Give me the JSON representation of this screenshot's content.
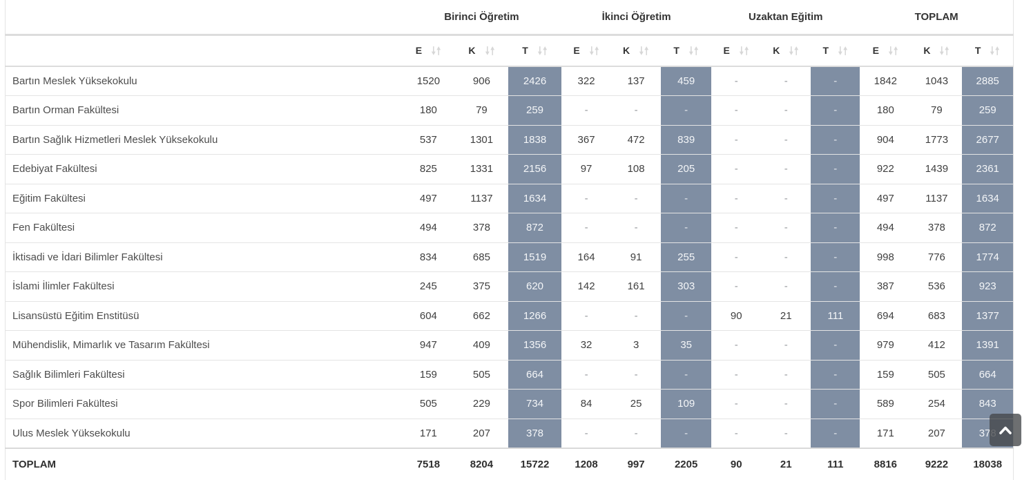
{
  "colors": {
    "total_column_bg": "#7f8ea3",
    "total_column_text": "#f4f6f8",
    "header_text": "#333333",
    "sort_icon": "#d7d7d7",
    "scroll_button_bg": "rgba(68,70,73,0.78)"
  },
  "icons": {
    "sort": "up-down-arrows",
    "scroll_top": "chevron-up"
  },
  "table": {
    "group_headers": [
      "Birinci Öğretim",
      "İkinci Öğretim",
      "Uzaktan Eğitim",
      "TOPLAM"
    ],
    "sub_headers": [
      "E",
      "K",
      "T",
      "E",
      "K",
      "T",
      "E",
      "K",
      "T",
      "E",
      "K",
      "T"
    ],
    "rows": [
      {
        "name": "Bartın Meslek Yüksekokulu",
        "values": [
          "1520",
          "906",
          "2426",
          "322",
          "137",
          "459",
          "-",
          "-",
          "-",
          "1842",
          "1043",
          "2885"
        ]
      },
      {
        "name": "Bartın Orman Fakültesi",
        "values": [
          "180",
          "79",
          "259",
          "-",
          "-",
          "-",
          "-",
          "-",
          "-",
          "180",
          "79",
          "259"
        ]
      },
      {
        "name": "Bartın Sağlık Hizmetleri Meslek Yüksekokulu",
        "values": [
          "537",
          "1301",
          "1838",
          "367",
          "472",
          "839",
          "-",
          "-",
          "-",
          "904",
          "1773",
          "2677"
        ]
      },
      {
        "name": "Edebiyat Fakültesi",
        "values": [
          "825",
          "1331",
          "2156",
          "97",
          "108",
          "205",
          "-",
          "-",
          "-",
          "922",
          "1439",
          "2361"
        ]
      },
      {
        "name": "Eğitim Fakültesi",
        "values": [
          "497",
          "1137",
          "1634",
          "-",
          "-",
          "-",
          "-",
          "-",
          "-",
          "497",
          "1137",
          "1634"
        ]
      },
      {
        "name": "Fen Fakültesi",
        "values": [
          "494",
          "378",
          "872",
          "-",
          "-",
          "-",
          "-",
          "-",
          "-",
          "494",
          "378",
          "872"
        ]
      },
      {
        "name": "İktisadi ve İdari Bilimler Fakültesi",
        "values": [
          "834",
          "685",
          "1519",
          "164",
          "91",
          "255",
          "-",
          "-",
          "-",
          "998",
          "776",
          "1774"
        ]
      },
      {
        "name": "İslami İlimler Fakültesi",
        "values": [
          "245",
          "375",
          "620",
          "142",
          "161",
          "303",
          "-",
          "-",
          "-",
          "387",
          "536",
          "923"
        ]
      },
      {
        "name": "Lisansüstü Eğitim Enstitüsü",
        "values": [
          "604",
          "662",
          "1266",
          "-",
          "-",
          "-",
          "90",
          "21",
          "111",
          "694",
          "683",
          "1377"
        ]
      },
      {
        "name": "Mühendislik, Mimarlık ve Tasarım Fakültesi",
        "values": [
          "947",
          "409",
          "1356",
          "32",
          "3",
          "35",
          "-",
          "-",
          "-",
          "979",
          "412",
          "1391"
        ]
      },
      {
        "name": "Sağlık Bilimleri Fakültesi",
        "values": [
          "159",
          "505",
          "664",
          "-",
          "-",
          "-",
          "-",
          "-",
          "-",
          "159",
          "505",
          "664"
        ]
      },
      {
        "name": "Spor Bilimleri Fakültesi",
        "values": [
          "505",
          "229",
          "734",
          "84",
          "25",
          "109",
          "-",
          "-",
          "-",
          "589",
          "254",
          "843"
        ]
      },
      {
        "name": "Ulus Meslek Yüksekokulu",
        "values": [
          "171",
          "207",
          "378",
          "-",
          "-",
          "-",
          "-",
          "-",
          "-",
          "171",
          "207",
          "378"
        ]
      }
    ],
    "footer": {
      "label": "TOPLAM",
      "values": [
        "7518",
        "8204",
        "15722",
        "1208",
        "997",
        "2205",
        "90",
        "21",
        "111",
        "8816",
        "9222",
        "18038"
      ]
    }
  }
}
